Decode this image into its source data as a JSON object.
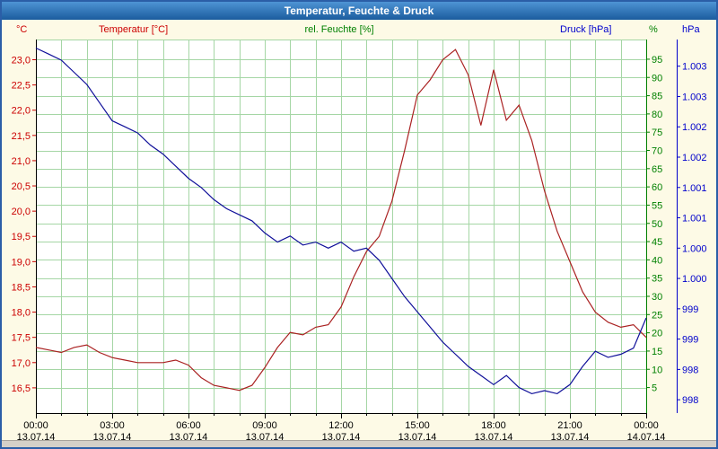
{
  "window": {
    "title": "Temperatur, Feuchte & Druck"
  },
  "theme": {
    "background": "#fdfae6",
    "border": "#2b5ea7",
    "titlebar_top": "#4e94d4",
    "titlebar_bottom": "#1b5c9e",
    "plot_background": "#ffffff",
    "grid": "#a5d6a5",
    "temp_color": "#cc0000",
    "hum_color": "#008000",
    "press_color": "#0000cc",
    "time_label_color": "#000000"
  },
  "chart_data": {
    "type": "line",
    "title": "Temperatur, Feuchte & Druck",
    "grid": {
      "color": "#a5d6a5",
      "horizontal_every_percent": 5,
      "vertical_every_hours": 1
    },
    "x_axis": {
      "hours_total": 24,
      "minor_tick_every_hours": 1,
      "major_tick_every_hours": 3,
      "tick_times": [
        "00:00",
        "03:00",
        "06:00",
        "09:00",
        "12:00",
        "15:00",
        "18:00",
        "21:00",
        "00:00"
      ],
      "tick_dates": [
        "13.07.14",
        "13.07.14",
        "13.07.14",
        "13.07.14",
        "13.07.14",
        "13.07.14",
        "13.07.14",
        "13.07.14",
        "14.07.14"
      ]
    },
    "axes": {
      "temperature": {
        "title": "Temperatur [°C]",
        "unit": "°C",
        "side": "left",
        "color": "#cc0000",
        "min": 16.0,
        "max": 23.4,
        "tick_values": [
          23.0,
          22.5,
          22.0,
          21.5,
          21.0,
          20.5,
          20.0,
          19.5,
          19.0,
          18.5,
          18.0,
          17.5,
          17.0,
          16.5
        ],
        "tick_labels": [
          "23,0",
          "22,5",
          "22,0",
          "21,5",
          "21,0",
          "20,5",
          "20,0",
          "19,5",
          "19,0",
          "18,5",
          "18,0",
          "17,5",
          "17,0",
          "16,5"
        ]
      },
      "humidity": {
        "title": "rel. Feuchte [%]",
        "unit": "%",
        "side": "right-inner",
        "color": "#008000",
        "min": -2,
        "max": 100.4,
        "tick_values": [
          95,
          90,
          85,
          80,
          75,
          70,
          65,
          60,
          55,
          50,
          45,
          40,
          35,
          30,
          25,
          20,
          15,
          10,
          5
        ],
        "tick_labels": [
          "95",
          "90",
          "85",
          "80",
          "75",
          "70",
          "65",
          "60",
          "55",
          "50",
          "45",
          "40",
          "35",
          "30",
          "25",
          "20",
          "15",
          "10",
          "5"
        ]
      },
      "pressure": {
        "title": "Druck [hPa]",
        "unit": "hPa",
        "side": "right-outer",
        "color": "#0000cc",
        "min": 997.28,
        "max": 1003.44,
        "tick_values": [
          1003.0,
          1002.5,
          1002.0,
          1001.5,
          1001.0,
          1000.5,
          1000.0,
          999.5,
          999.0,
          998.5,
          998.0,
          997.5
        ],
        "tick_labels": [
          "1.003",
          "1.003",
          "1.002",
          "1.002",
          "1.001",
          "1.001",
          "1.000",
          "1.000",
          "999",
          "999",
          "998",
          "998"
        ]
      }
    },
    "sampling": {
      "start": "00:00",
      "interval_minutes": 30,
      "points": 49
    },
    "series": [
      {
        "name": "Temperatur",
        "axis": "temperature",
        "unit": "°C",
        "color": "#aa2222",
        "values": [
          17.3,
          17.25,
          17.2,
          17.3,
          17.35,
          17.2,
          17.1,
          17.05,
          17.0,
          17.0,
          17.0,
          17.05,
          16.95,
          16.7,
          16.55,
          16.5,
          16.45,
          16.55,
          16.9,
          17.3,
          17.6,
          17.55,
          17.7,
          17.75,
          18.1,
          18.7,
          19.2,
          19.5,
          20.2,
          21.2,
          22.3,
          22.6,
          23.0,
          23.2,
          22.7,
          21.7,
          22.8,
          21.8,
          22.1,
          21.4,
          20.4,
          19.6,
          19.0,
          18.4,
          18.0,
          17.8,
          17.7,
          17.75,
          17.5
        ]
      },
      {
        "name": "Druck",
        "axis": "pressure",
        "unit": "hPa",
        "color": "#0f0f99",
        "values": [
          1003.3,
          1003.2,
          1003.1,
          1002.9,
          1002.7,
          1002.4,
          1002.1,
          1002.0,
          1001.9,
          1001.7,
          1001.55,
          1001.35,
          1001.15,
          1001.0,
          1000.8,
          1000.65,
          1000.55,
          1000.45,
          1000.25,
          1000.1,
          1000.2,
          1000.05,
          1000.1,
          1000.0,
          1000.1,
          999.95,
          1000.0,
          999.8,
          999.5,
          999.2,
          998.95,
          998.7,
          998.45,
          998.25,
          998.05,
          997.9,
          997.75,
          997.9,
          997.7,
          997.6,
          997.65,
          997.6,
          997.75,
          998.05,
          998.3,
          998.2,
          998.25,
          998.35,
          998.85
        ]
      }
    ]
  }
}
